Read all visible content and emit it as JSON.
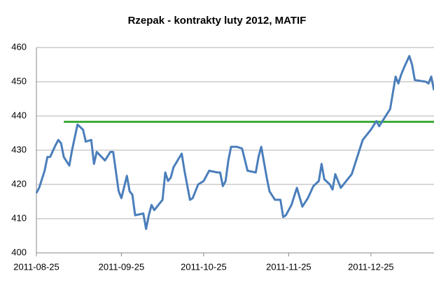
{
  "chart_data": {
    "type": "line",
    "title": "Rzepak - kontrakty luty 2012, MATIF",
    "x": [
      "2011-08-25",
      "2011-08-26",
      "2011-08-28",
      "2011-08-29",
      "2011-08-30",
      "2011-09-01",
      "2011-09-02",
      "2011-09-03",
      "2011-09-04",
      "2011-09-06",
      "2011-09-07",
      "2011-09-09",
      "2011-09-11",
      "2011-09-12",
      "2011-09-14",
      "2011-09-15",
      "2011-09-16",
      "2011-09-19",
      "2011-09-21",
      "2011-09-22",
      "2011-09-24",
      "2011-09-25",
      "2011-09-27",
      "2011-09-28",
      "2011-09-29",
      "2011-09-30",
      "2011-10-03",
      "2011-10-04",
      "2011-10-05",
      "2011-10-06",
      "2011-10-07",
      "2011-10-10",
      "2011-10-11",
      "2011-10-12",
      "2011-10-13",
      "2011-10-14",
      "2011-10-17",
      "2011-10-18",
      "2011-10-20",
      "2011-10-21",
      "2011-10-23",
      "2011-10-25",
      "2011-10-27",
      "2011-10-30",
      "2011-10-31",
      "2011-11-01",
      "2011-11-02",
      "2011-11-03",
      "2011-11-04",
      "2011-11-06",
      "2011-11-08",
      "2011-11-10",
      "2011-11-13",
      "2011-11-14",
      "2011-11-15",
      "2011-11-17",
      "2011-11-18",
      "2011-11-20",
      "2011-11-22",
      "2011-11-23",
      "2011-11-24",
      "2011-11-26",
      "2011-11-28",
      "2011-11-30",
      "2011-12-02",
      "2011-12-04",
      "2011-12-06",
      "2011-12-07",
      "2011-12-08",
      "2011-12-10",
      "2011-12-11",
      "2011-12-12",
      "2011-12-14",
      "2011-12-16",
      "2011-12-18",
      "2011-12-20",
      "2011-12-22",
      "2011-12-25",
      "2011-12-27",
      "2011-12-28",
      "2011-12-30",
      "2012-01-01",
      "2012-01-03",
      "2012-01-04",
      "2012-01-05",
      "2012-01-06",
      "2012-01-08",
      "2012-01-09",
      "2012-01-10",
      "2012-01-14",
      "2012-01-15",
      "2012-01-16",
      "2012-01-17"
    ],
    "series": [
      {
        "color": "#4a7ebb",
        "values": [
          417.5,
          419,
          424,
          428,
          428,
          431.5,
          433,
          432,
          428,
          425.5,
          430,
          437.5,
          436,
          432.5,
          433,
          426,
          429.5,
          427,
          429.5,
          429.5,
          418,
          416,
          422.5,
          418,
          417,
          411,
          411.5,
          407,
          411,
          414,
          412.5,
          415.5,
          423.5,
          421,
          422,
          425,
          429,
          424,
          415.5,
          416,
          420,
          421,
          424,
          423.5,
          423.5,
          419.5,
          421,
          427,
          431,
          431,
          430.5,
          424,
          423.5,
          428,
          431,
          422,
          418,
          415.5,
          415.5,
          410.5,
          411,
          414,
          419,
          413.5,
          416,
          419.5,
          421,
          426,
          421.5,
          420,
          418.5,
          423,
          419,
          421,
          423,
          428,
          433,
          436,
          438.5,
          437,
          439.5,
          442,
          451.5,
          449.5,
          452,
          454,
          457.5,
          455,
          450.5,
          450,
          449.5,
          451.5,
          447.5
        ]
      }
    ],
    "hlines": [
      {
        "value": 438.3,
        "color": "#3aaa35",
        "from": "2011-09-04"
      }
    ],
    "xlim": [
      "2011-08-25",
      "2012-01-17"
    ],
    "xticks": [
      "2011-08-25",
      "2011-09-25",
      "2011-10-25",
      "2011-11-25",
      "2011-12-25"
    ],
    "ylim": [
      400,
      460
    ],
    "yticks": [
      400,
      410,
      420,
      430,
      440,
      450,
      460
    ],
    "grid": true
  }
}
